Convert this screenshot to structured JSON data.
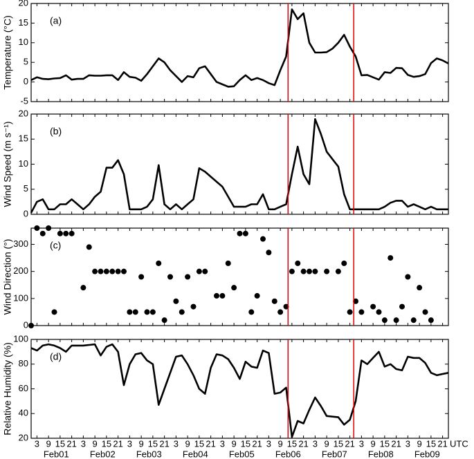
{
  "chart_data": [
    {
      "type": "line",
      "label": "(a)",
      "ylabel": "Temperature (°C)",
      "color": "#000000",
      "x": [
        0,
        3,
        6,
        9,
        12,
        15,
        18,
        21,
        24,
        27,
        30,
        33,
        36,
        39,
        42,
        45,
        48,
        51,
        54,
        57,
        60,
        63,
        66,
        69,
        72,
        75,
        78,
        81,
        84,
        87,
        90,
        93,
        96,
        99,
        102,
        105,
        108,
        111,
        114,
        117,
        120,
        123,
        126,
        129,
        132,
        135,
        138,
        141,
        144,
        147,
        150,
        153,
        156,
        159,
        162,
        165,
        168,
        171,
        174,
        177,
        180,
        183,
        186,
        189,
        192,
        195,
        198,
        201,
        204,
        207,
        210,
        213,
        216
      ],
      "values": [
        0.5,
        1.2,
        0.8,
        0.7,
        0.9,
        1.0,
        1.7,
        0.6,
        0.8,
        0.8,
        1.7,
        1.6,
        1.6,
        1.7,
        1.7,
        0.5,
        2.5,
        1.3,
        1.1,
        0.3,
        2.0,
        4.0,
        6.0,
        5.0,
        3.0,
        1.5,
        0,
        1.5,
        1.2,
        3.5,
        4.0,
        2.0,
        0,
        -0.6,
        -1.2,
        -1.1,
        0.5,
        1.7,
        0.5,
        1.0,
        0.5,
        -0.3,
        -0.8,
        3.0,
        6.5,
        18.5,
        16,
        17.5,
        10,
        7.5,
        7.5,
        7.6,
        8.5,
        10,
        12,
        9,
        6.5,
        1.7,
        1.8,
        1.2,
        0.6,
        2.5,
        2.3,
        3.6,
        3.5,
        1.8,
        1.3,
        1.5,
        2.0,
        4.8,
        6.0,
        5.5,
        4.7
      ],
      "xlim": [
        0,
        216
      ],
      "ylim": [
        -5,
        20
      ],
      "yticks": [
        -5,
        0,
        5,
        10,
        15,
        20
      ],
      "vlines": [
        133,
        167
      ],
      "vline_color": "#e00000"
    },
    {
      "type": "line",
      "label": "(b)",
      "ylabel": "Wind Speed (m s⁻¹)",
      "color": "#000000",
      "x": [
        0,
        3,
        6,
        9,
        12,
        15,
        18,
        21,
        24,
        27,
        30,
        33,
        36,
        39,
        42,
        45,
        48,
        51,
        54,
        57,
        60,
        63,
        66,
        69,
        72,
        75,
        78,
        81,
        84,
        87,
        90,
        93,
        96,
        99,
        102,
        105,
        108,
        111,
        114,
        117,
        120,
        123,
        126,
        129,
        132,
        135,
        138,
        141,
        144,
        147,
        150,
        153,
        156,
        159,
        162,
        165,
        168,
        171,
        174,
        177,
        180,
        183,
        186,
        189,
        192,
        195,
        198,
        201,
        204,
        207,
        210,
        213,
        216
      ],
      "values": [
        0.3,
        2.5,
        3,
        1,
        1,
        2,
        2,
        3,
        2,
        1,
        2,
        3.5,
        4.5,
        9.3,
        9.3,
        10.8,
        8,
        1,
        1,
        1,
        1.5,
        3,
        9.8,
        2,
        1,
        2,
        1,
        2,
        3,
        9.2,
        8.5,
        7.5,
        6.5,
        5.5,
        3.5,
        1.5,
        1.5,
        1.5,
        2,
        2,
        4,
        1,
        1,
        1.5,
        2,
        8,
        13.5,
        8,
        6,
        19,
        16,
        12.5,
        11,
        9.5,
        4,
        1,
        1,
        1,
        1,
        1,
        1,
        1.5,
        2.3,
        2.7,
        2.7,
        1.5,
        2,
        1.5,
        1,
        1.5,
        1,
        1,
        1
      ],
      "xlim": [
        0,
        216
      ],
      "ylim": [
        0,
        20
      ],
      "yticks": [
        0,
        5,
        10,
        15,
        20
      ],
      "vlines": [
        133,
        167
      ],
      "vline_color": "#e00000"
    },
    {
      "type": "scatter",
      "label": "(c)",
      "ylabel": "Wind Direction (°)",
      "color": "#000000",
      "x": [
        0,
        3,
        6,
        9,
        12,
        15,
        18,
        21,
        27,
        30,
        33,
        36,
        39,
        42,
        45,
        48,
        51,
        54,
        57,
        60,
        63,
        66,
        69,
        72,
        75,
        78,
        81,
        84,
        87,
        90,
        96,
        99,
        102,
        105,
        108,
        111,
        114,
        117,
        120,
        123,
        126,
        129,
        132,
        135,
        138,
        141,
        144,
        147,
        153,
        159,
        162,
        165,
        168,
        171,
        177,
        180,
        183,
        186,
        189,
        192,
        195,
        198,
        201,
        204,
        207
      ],
      "values": [
        0,
        360,
        340,
        360,
        50,
        340,
        340,
        340,
        140,
        290,
        200,
        200,
        200,
        200,
        200,
        200,
        50,
        50,
        180,
        50,
        50,
        230,
        20,
        180,
        90,
        50,
        180,
        70,
        200,
        200,
        110,
        110,
        230,
        140,
        340,
        340,
        50,
        110,
        320,
        270,
        90,
        50,
        70,
        200,
        230,
        200,
        200,
        200,
        200,
        200,
        230,
        50,
        90,
        50,
        70,
        50,
        20,
        250,
        20,
        70,
        180,
        20,
        140,
        50,
        20
      ],
      "xlim": [
        0,
        216
      ],
      "ylim": [
        0,
        360
      ],
      "yticks": [
        0,
        100,
        200,
        300
      ],
      "vlines": [
        133,
        167
      ],
      "vline_color": "#e00000"
    },
    {
      "type": "line",
      "label": "(d)",
      "ylabel": "Relative Humidity (%)",
      "color": "#000000",
      "x": [
        0,
        3,
        6,
        9,
        12,
        15,
        18,
        21,
        24,
        27,
        30,
        33,
        36,
        39,
        42,
        45,
        48,
        51,
        54,
        57,
        60,
        63,
        66,
        69,
        72,
        75,
        78,
        81,
        84,
        87,
        90,
        93,
        96,
        99,
        102,
        105,
        108,
        111,
        114,
        117,
        120,
        123,
        126,
        129,
        132,
        135,
        138,
        141,
        144,
        147,
        150,
        153,
        156,
        159,
        162,
        165,
        168,
        171,
        174,
        177,
        180,
        183,
        186,
        189,
        192,
        195,
        198,
        201,
        204,
        207,
        210,
        213,
        216
      ],
      "values": [
        93,
        91,
        95,
        96,
        95,
        93,
        90,
        95,
        95,
        95,
        95.5,
        96,
        87,
        94,
        96,
        90,
        63,
        80,
        88,
        89,
        83,
        80,
        47,
        60,
        73,
        86,
        87,
        80,
        71,
        60,
        56,
        77,
        88,
        87,
        84,
        77,
        68,
        82,
        78,
        77,
        91,
        89,
        56,
        57,
        61,
        21,
        34,
        32,
        43,
        53,
        46,
        38,
        37.5,
        37,
        31,
        35,
        50,
        83,
        80,
        85,
        90,
        78,
        80,
        76,
        75,
        86,
        85,
        85,
        81,
        73,
        71,
        72,
        73
      ],
      "xlim": [
        0,
        216
      ],
      "ylim": [
        20,
        100
      ],
      "yticks": [
        20,
        40,
        60,
        80,
        100
      ],
      "vlines": [
        133,
        167
      ],
      "vline_color": "#e00000",
      "xticks": [
        {
          "value": 3,
          "label": "3"
        },
        {
          "value": 9,
          "label": "9"
        },
        {
          "value": 15,
          "label": "15"
        },
        {
          "value": 21,
          "label": "21"
        },
        {
          "value": 27,
          "label": "3"
        },
        {
          "value": 33,
          "label": "9"
        },
        {
          "value": 39,
          "label": "15"
        },
        {
          "value": 45,
          "label": "21"
        },
        {
          "value": 51,
          "label": "3"
        },
        {
          "value": 57,
          "label": "9"
        },
        {
          "value": 63,
          "label": "15"
        },
        {
          "value": 69,
          "label": "21"
        },
        {
          "value": 75,
          "label": "3"
        },
        {
          "value": 81,
          "label": "9"
        },
        {
          "value": 87,
          "label": "15"
        },
        {
          "value": 93,
          "label": "21"
        },
        {
          "value": 99,
          "label": "3"
        },
        {
          "value": 105,
          "label": "9"
        },
        {
          "value": 111,
          "label": "15"
        },
        {
          "value": 117,
          "label": "21"
        },
        {
          "value": 123,
          "label": "3"
        },
        {
          "value": 129,
          "label": "9"
        },
        {
          "value": 135,
          "label": "15"
        },
        {
          "value": 141,
          "label": "21"
        },
        {
          "value": 147,
          "label": "3"
        },
        {
          "value": 153,
          "label": "9"
        },
        {
          "value": 159,
          "label": "15"
        },
        {
          "value": 165,
          "label": "21"
        },
        {
          "value": 171,
          "label": "3"
        },
        {
          "value": 177,
          "label": "9"
        },
        {
          "value": 183,
          "label": "15"
        },
        {
          "value": 189,
          "label": "21"
        },
        {
          "value": 195,
          "label": "3"
        },
        {
          "value": 201,
          "label": "9"
        },
        {
          "value": 207,
          "label": "15"
        },
        {
          "value": 213,
          "label": "21"
        }
      ],
      "xgroups": [
        {
          "value": 13,
          "label": "Feb01"
        },
        {
          "value": 37,
          "label": "Feb02"
        },
        {
          "value": 61,
          "label": "Feb03"
        },
        {
          "value": 85,
          "label": "Feb04"
        },
        {
          "value": 109,
          "label": "Feb05"
        },
        {
          "value": 133,
          "label": "Feb06"
        },
        {
          "value": 157,
          "label": "Feb07"
        },
        {
          "value": 181,
          "label": "Feb08"
        },
        {
          "value": 205,
          "label": "Feb09"
        }
      ],
      "x_unit_label": "UTC"
    }
  ]
}
